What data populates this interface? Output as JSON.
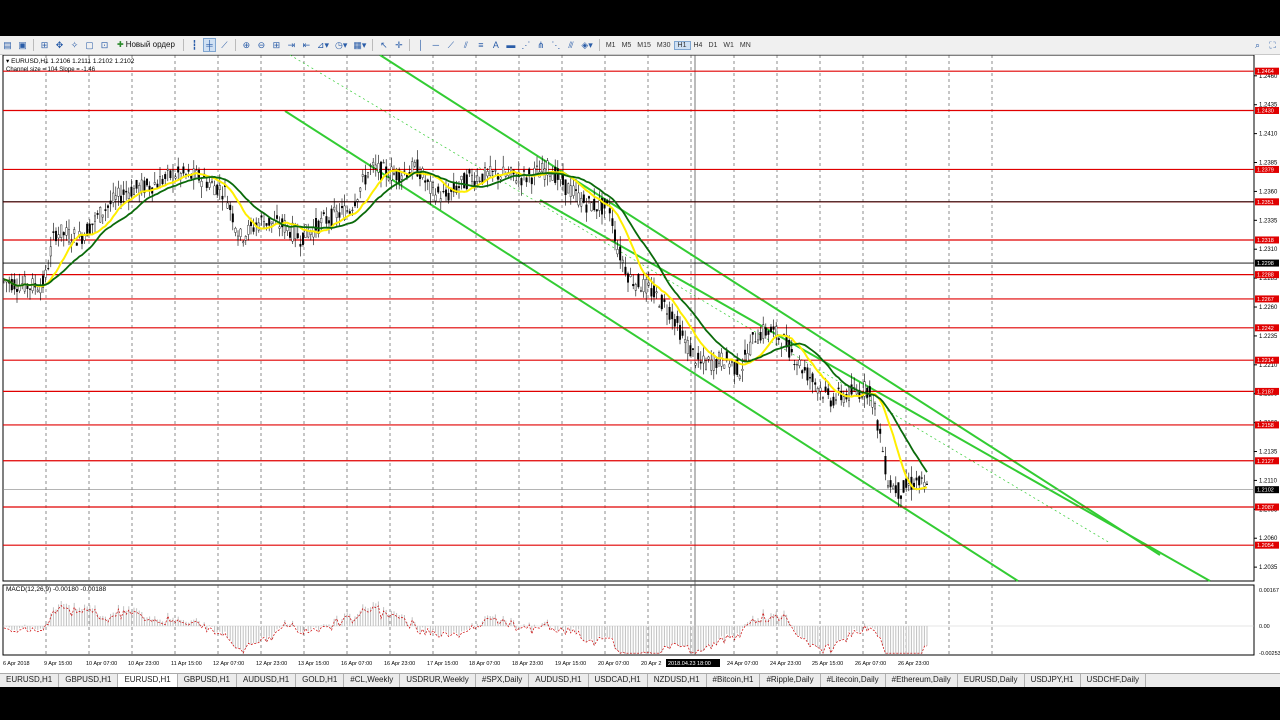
{
  "toolbar": {
    "new_order_label": "Новый ордер",
    "timeframes": [
      "M1",
      "M5",
      "M15",
      "M30",
      "H1",
      "H4",
      "D1",
      "W1",
      "MN"
    ],
    "active_timeframe": "H1"
  },
  "chart": {
    "info_line": "EURUSD,H1  1.2106 1.2111 1.2102 1.2102",
    "channel_line": "Channel size = 104 Slope = -1.46",
    "price_ticks": [
      "1.2460",
      "1.2435",
      "1.2410",
      "1.2385",
      "1.2360",
      "1.2335",
      "1.2310",
      "1.2285",
      "1.2260",
      "1.2235",
      "1.2210",
      "1.2185",
      "1.2160",
      "1.2135",
      "1.2110",
      "1.2085",
      "1.2060",
      "1.2035"
    ],
    "levels": [
      {
        "label": "1.2464",
        "price": 1.2464
      },
      {
        "label": "1.2430",
        "price": 1.243
      },
      {
        "label": "1.2379",
        "price": 1.2379
      },
      {
        "label": "1.2351",
        "price": 1.2351
      },
      {
        "label": "1.2318",
        "price": 1.2318
      },
      {
        "label": "1.2288",
        "price": 1.2288
      },
      {
        "label": "1.2267",
        "price": 1.2267
      },
      {
        "label": "1.2242",
        "price": 1.2242
      },
      {
        "label": "1.2214",
        "price": 1.2214
      },
      {
        "label": "1.2187",
        "price": 1.2187
      },
      {
        "label": "1.2158",
        "price": 1.2158
      },
      {
        "label": "1.2127",
        "price": 1.2127
      },
      {
        "label": "1.2087",
        "price": 1.2087
      },
      {
        "label": "1.2054",
        "price": 1.2054
      }
    ],
    "black_levels": [
      1.2351,
      1.2298
    ],
    "current_price_label": "1.2102",
    "bid_label": "1.2298",
    "macd_label": "MACD(12,26,9) -0.00180 -0.00188",
    "macd_ticks": [
      "0.00167",
      "0.00",
      "-0.00253"
    ],
    "time_labels": [
      "6 Apr 2018",
      "9 Apr 15:00",
      "10 Apr 07:00",
      "10 Apr 23:00",
      "11 Apr 15:00",
      "12 Apr 07:00",
      "12 Apr 23:00",
      "13 Apr 15:00",
      "16 Apr 07:00",
      "16 Apr 23:00",
      "17 Apr 15:00",
      "18 Apr 07:00",
      "18 Apr 23:00",
      "19 Apr 15:00",
      "20 Apr 07:00",
      "20 Apr 2",
      "2018.04.23 18:00",
      "24 Apr 07:00",
      "24 Apr 23:00",
      "25 Apr 15:00",
      "26 Apr 07:00",
      "26 Apr 23:00"
    ]
  },
  "tabs": [
    "EURUSD,H1",
    "GBPUSD,H1",
    "EURUSD,H1",
    "GBPUSD,H1",
    "AUDUSD,H1",
    "GOLD,H1",
    "#CL,Weekly",
    "USDRUR,Weekly",
    "#SPX,Daily",
    "AUDUSD,H1",
    "USDCAD,H1",
    "NZDUSD,H1",
    "#Bitcoin,H1",
    "#Ripple,Daily",
    "#Litecoin,Daily",
    "#Ethereum,Daily",
    "EURUSD,Daily",
    "USDJPY,H1",
    "USDCHF,Daily"
  ],
  "active_tab_index": 2,
  "colors": {
    "level": "#e00000",
    "channel": "#33cc33",
    "ma_fast": "#ffee00",
    "ma_slow": "#0a6a0a",
    "candle": "#000000",
    "macd_hist": "#c0c0c0",
    "signal": "#cc0000"
  }
}
